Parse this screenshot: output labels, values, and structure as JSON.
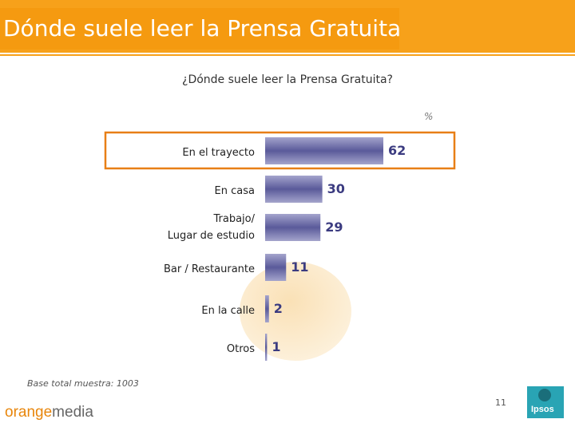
{
  "header": {
    "title": "Dónde suele leer la Prensa Gratuita"
  },
  "chart_data": {
    "type": "bar",
    "orientation": "horizontal",
    "title": "¿Dónde suele leer la Prensa Gratuita?",
    "unit": "%",
    "categories": [
      "En el trayecto",
      "En casa",
      "Trabajo/\nLugar de estudio",
      "Bar / Restaurante",
      "En la calle",
      "Otros"
    ],
    "values": [
      62,
      30,
      29,
      11,
      2,
      1
    ],
    "highlighted": "En el trayecto",
    "colors": {
      "bar": "#5a5a9a",
      "bar_light": "#a4a4cc",
      "label": "#3b3b80",
      "highlight_border": "#e87f16"
    }
  },
  "footer": {
    "base_note": "Base total muestra: 1003",
    "page_number": "11",
    "brand_orange": "orange",
    "brand_media": "media",
    "ipsos_logo": "Ipsos"
  }
}
